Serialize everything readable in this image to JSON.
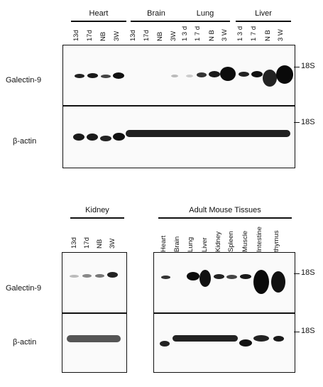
{
  "top_blot": {
    "groups": [
      {
        "name": "Heart",
        "lanes": [
          "13d",
          "17d",
          "NB",
          "3W"
        ]
      },
      {
        "name": "Brain",
        "lanes": [
          "13d",
          "17d",
          "NB",
          "3W"
        ]
      },
      {
        "name": "Lung",
        "lanes": [
          "1 3 d",
          "1 7 d",
          "N B",
          "3 W"
        ]
      },
      {
        "name": "Liver",
        "lanes": [
          "1 3 d",
          "1 7 d",
          "N B",
          "3 W"
        ]
      }
    ],
    "row_labels": [
      "Galectin-9",
      "β-actin"
    ],
    "marker": "18S"
  },
  "kidney_blot": {
    "group": "Kidney",
    "lanes": [
      "13d",
      "17d",
      "NB",
      "3W"
    ],
    "row_labels": [
      "Galectin-9",
      "β-actin"
    ]
  },
  "adult_blot": {
    "group": "Adult Mouse Tissues",
    "lanes": [
      "Heart",
      "Brain",
      "Lung",
      "Liver",
      "Kidney",
      "Spleen",
      "Muscle",
      "Intestine",
      "thymus"
    ],
    "marker": "18S"
  }
}
